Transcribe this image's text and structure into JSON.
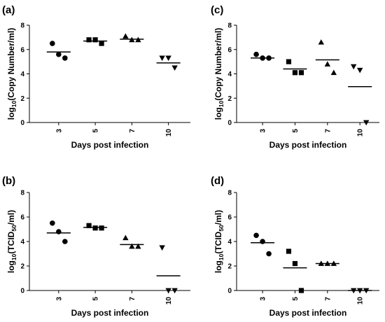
{
  "chart_data": [
    {
      "type": "scatter",
      "panel_label": "(a)",
      "ylabel_main": "log",
      "ylabel_sub": "10",
      "ylabel_rest": "(Copy Number/ml)",
      "xlabel": "Days post infection",
      "categories": [
        "3",
        "5",
        "7",
        "10"
      ],
      "ylim": [
        0,
        8
      ],
      "yticks": [
        "0",
        "2",
        "4",
        "6",
        "8"
      ],
      "markers": [
        "circle",
        "square",
        "triangle-up",
        "triangle-down"
      ],
      "points": [
        [
          6.5,
          5.6,
          5.3
        ],
        [
          6.8,
          6.8,
          6.5
        ],
        [
          7.1,
          6.8,
          6.8
        ],
        [
          5.3,
          5.3,
          4.5
        ]
      ],
      "means": [
        5.8,
        6.7,
        6.85,
        4.9
      ]
    },
    {
      "type": "scatter",
      "panel_label": "(c)",
      "ylabel_main": "log",
      "ylabel_sub": "10",
      "ylabel_rest": "(Copy Number/ml)",
      "xlabel": "Days post infection",
      "categories": [
        "3",
        "5",
        "7",
        "10"
      ],
      "ylim": [
        0,
        8
      ],
      "yticks": [
        "0",
        "2",
        "4",
        "6",
        "8"
      ],
      "markers": [
        "circle",
        "square",
        "triangle-up",
        "triangle-down"
      ],
      "points": [
        [
          5.6,
          5.3,
          5.3
        ],
        [
          5.0,
          4.1,
          4.1
        ],
        [
          6.6,
          4.8,
          4.1
        ],
        [
          4.6,
          4.3,
          0.0
        ]
      ],
      "means": [
        5.3,
        4.4,
        5.15,
        2.95
      ]
    },
    {
      "type": "scatter",
      "panel_label": "(b)",
      "ylabel_main": "log",
      "ylabel_sub": "10",
      "ylabel_mid": "(TCID",
      "ylabel_sub2": "50",
      "ylabel_rest": "/ml)",
      "xlabel": "Days post infection",
      "categories": [
        "3",
        "5",
        "7",
        "10"
      ],
      "ylim": [
        0,
        8
      ],
      "yticks": [
        "0",
        "2",
        "4",
        "6",
        "8"
      ],
      "markers": [
        "circle",
        "square",
        "triangle-up",
        "triangle-down"
      ],
      "points": [
        [
          5.5,
          4.8,
          4.0
        ],
        [
          5.3,
          5.1,
          5.1
        ],
        [
          4.3,
          3.6,
          3.6
        ],
        [
          3.5,
          0.0,
          0.0
        ]
      ],
      "means": [
        4.7,
        5.15,
        3.75,
        1.2
      ]
    },
    {
      "type": "scatter",
      "panel_label": "(d)",
      "ylabel_main": "log",
      "ylabel_sub": "10",
      "ylabel_mid": "(TCID",
      "ylabel_sub2": "50",
      "ylabel_rest": "/ml)",
      "xlabel": "Days post infection",
      "categories": [
        "3",
        "5",
        "7",
        "10"
      ],
      "ylim": [
        0,
        8
      ],
      "yticks": [
        "0",
        "2",
        "4",
        "6",
        "8"
      ],
      "markers": [
        "circle",
        "square",
        "triangle-up",
        "triangle-down"
      ],
      "points": [
        [
          4.5,
          4.0,
          3.0
        ],
        [
          3.2,
          2.2,
          0.0
        ],
        [
          2.2,
          2.2,
          2.2
        ],
        [
          0.0,
          0.0,
          0.0
        ]
      ],
      "means": [
        3.9,
        1.85,
        2.2,
        0.0
      ]
    }
  ]
}
